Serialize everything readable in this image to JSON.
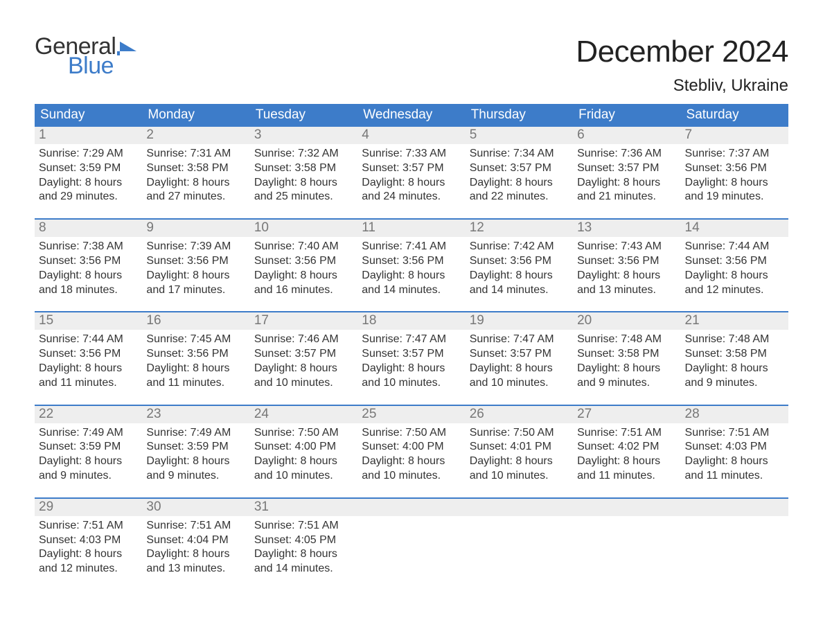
{
  "brand": {
    "word1": "General",
    "word2": "Blue",
    "flag_color": "#3d7cc9"
  },
  "header": {
    "month_title": "December 2024",
    "location": "Stebliv, Ukraine"
  },
  "colors": {
    "header_bg": "#3d7cc9",
    "header_text": "#ffffff",
    "daynum_bg": "#eeeeee",
    "daynum_text": "#777777",
    "body_text": "#333333",
    "week_border": "#3d7cc9",
    "page_bg": "#ffffff"
  },
  "fonts": {
    "title_size_pt": 33,
    "location_size_pt": 18,
    "header_size_pt": 14,
    "body_size_pt": 12
  },
  "day_names": [
    "Sunday",
    "Monday",
    "Tuesday",
    "Wednesday",
    "Thursday",
    "Friday",
    "Saturday"
  ],
  "labels": {
    "sunrise": "Sunrise:",
    "sunset": "Sunset:",
    "daylight_prefix": "Daylight:"
  },
  "weeks": [
    [
      {
        "n": "1",
        "sr": "7:29 AM",
        "ss": "3:59 PM",
        "dl1": "8 hours",
        "dl2": "and 29 minutes."
      },
      {
        "n": "2",
        "sr": "7:31 AM",
        "ss": "3:58 PM",
        "dl1": "8 hours",
        "dl2": "and 27 minutes."
      },
      {
        "n": "3",
        "sr": "7:32 AM",
        "ss": "3:58 PM",
        "dl1": "8 hours",
        "dl2": "and 25 minutes."
      },
      {
        "n": "4",
        "sr": "7:33 AM",
        "ss": "3:57 PM",
        "dl1": "8 hours",
        "dl2": "and 24 minutes."
      },
      {
        "n": "5",
        "sr": "7:34 AM",
        "ss": "3:57 PM",
        "dl1": "8 hours",
        "dl2": "and 22 minutes."
      },
      {
        "n": "6",
        "sr": "7:36 AM",
        "ss": "3:57 PM",
        "dl1": "8 hours",
        "dl2": "and 21 minutes."
      },
      {
        "n": "7",
        "sr": "7:37 AM",
        "ss": "3:56 PM",
        "dl1": "8 hours",
        "dl2": "and 19 minutes."
      }
    ],
    [
      {
        "n": "8",
        "sr": "7:38 AM",
        "ss": "3:56 PM",
        "dl1": "8 hours",
        "dl2": "and 18 minutes."
      },
      {
        "n": "9",
        "sr": "7:39 AM",
        "ss": "3:56 PM",
        "dl1": "8 hours",
        "dl2": "and 17 minutes."
      },
      {
        "n": "10",
        "sr": "7:40 AM",
        "ss": "3:56 PM",
        "dl1": "8 hours",
        "dl2": "and 16 minutes."
      },
      {
        "n": "11",
        "sr": "7:41 AM",
        "ss": "3:56 PM",
        "dl1": "8 hours",
        "dl2": "and 14 minutes."
      },
      {
        "n": "12",
        "sr": "7:42 AM",
        "ss": "3:56 PM",
        "dl1": "8 hours",
        "dl2": "and 14 minutes."
      },
      {
        "n": "13",
        "sr": "7:43 AM",
        "ss": "3:56 PM",
        "dl1": "8 hours",
        "dl2": "and 13 minutes."
      },
      {
        "n": "14",
        "sr": "7:44 AM",
        "ss": "3:56 PM",
        "dl1": "8 hours",
        "dl2": "and 12 minutes."
      }
    ],
    [
      {
        "n": "15",
        "sr": "7:44 AM",
        "ss": "3:56 PM",
        "dl1": "8 hours",
        "dl2": "and 11 minutes."
      },
      {
        "n": "16",
        "sr": "7:45 AM",
        "ss": "3:56 PM",
        "dl1": "8 hours",
        "dl2": "and 11 minutes."
      },
      {
        "n": "17",
        "sr": "7:46 AM",
        "ss": "3:57 PM",
        "dl1": "8 hours",
        "dl2": "and 10 minutes."
      },
      {
        "n": "18",
        "sr": "7:47 AM",
        "ss": "3:57 PM",
        "dl1": "8 hours",
        "dl2": "and 10 minutes."
      },
      {
        "n": "19",
        "sr": "7:47 AM",
        "ss": "3:57 PM",
        "dl1": "8 hours",
        "dl2": "and 10 minutes."
      },
      {
        "n": "20",
        "sr": "7:48 AM",
        "ss": "3:58 PM",
        "dl1": "8 hours",
        "dl2": "and 9 minutes."
      },
      {
        "n": "21",
        "sr": "7:48 AM",
        "ss": "3:58 PM",
        "dl1": "8 hours",
        "dl2": "and 9 minutes."
      }
    ],
    [
      {
        "n": "22",
        "sr": "7:49 AM",
        "ss": "3:59 PM",
        "dl1": "8 hours",
        "dl2": "and 9 minutes."
      },
      {
        "n": "23",
        "sr": "7:49 AM",
        "ss": "3:59 PM",
        "dl1": "8 hours",
        "dl2": "and 9 minutes."
      },
      {
        "n": "24",
        "sr": "7:50 AM",
        "ss": "4:00 PM",
        "dl1": "8 hours",
        "dl2": "and 10 minutes."
      },
      {
        "n": "25",
        "sr": "7:50 AM",
        "ss": "4:00 PM",
        "dl1": "8 hours",
        "dl2": "and 10 minutes."
      },
      {
        "n": "26",
        "sr": "7:50 AM",
        "ss": "4:01 PM",
        "dl1": "8 hours",
        "dl2": "and 10 minutes."
      },
      {
        "n": "27",
        "sr": "7:51 AM",
        "ss": "4:02 PM",
        "dl1": "8 hours",
        "dl2": "and 11 minutes."
      },
      {
        "n": "28",
        "sr": "7:51 AM",
        "ss": "4:03 PM",
        "dl1": "8 hours",
        "dl2": "and 11 minutes."
      }
    ],
    [
      {
        "n": "29",
        "sr": "7:51 AM",
        "ss": "4:03 PM",
        "dl1": "8 hours",
        "dl2": "and 12 minutes."
      },
      {
        "n": "30",
        "sr": "7:51 AM",
        "ss": "4:04 PM",
        "dl1": "8 hours",
        "dl2": "and 13 minutes."
      },
      {
        "n": "31",
        "sr": "7:51 AM",
        "ss": "4:05 PM",
        "dl1": "8 hours",
        "dl2": "and 14 minutes."
      },
      {
        "empty": true
      },
      {
        "empty": true
      },
      {
        "empty": true
      },
      {
        "empty": true
      }
    ]
  ]
}
